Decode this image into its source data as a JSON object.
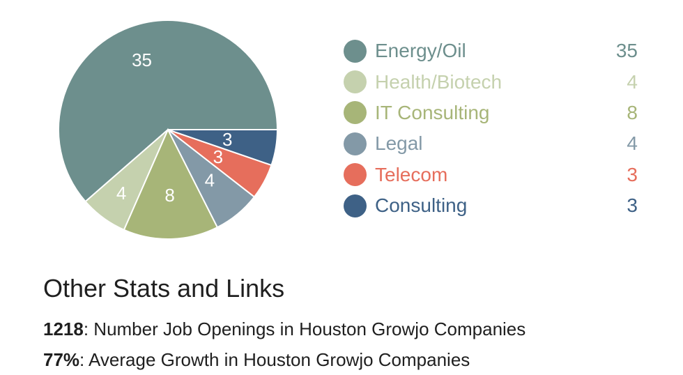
{
  "chart_data": {
    "type": "pie",
    "categories": [
      "Energy/Oil",
      "Health/Biotech",
      "IT Consulting",
      "Legal",
      "Telecom",
      "Consulting"
    ],
    "values": [
      35,
      4,
      8,
      4,
      3,
      3
    ],
    "colors": [
      "#6d8f8d",
      "#c5d1ae",
      "#a7b578",
      "#8399a7",
      "#e66e5c",
      "#3e6186"
    ],
    "data_labels": [
      "35",
      "4",
      "8",
      "4",
      "3",
      "3"
    ],
    "legend_position": "right"
  },
  "legend": [
    {
      "label": "Energy/Oil",
      "value": "35",
      "color": "#6d8f8d"
    },
    {
      "label": "Health/Biotech",
      "value": "4",
      "color": "#c5d1ae"
    },
    {
      "label": "IT Consulting",
      "value": "8",
      "color": "#a7b578"
    },
    {
      "label": "Legal",
      "value": "4",
      "color": "#8399a7"
    },
    {
      "label": "Telecom",
      "value": "3",
      "color": "#e66e5c"
    },
    {
      "label": "Consulting",
      "value": "3",
      "color": "#3e6186"
    }
  ],
  "stats": {
    "title": "Other Stats and Links",
    "lines": [
      {
        "value": "1218",
        "text": ": Number Job Openings in Houston Growjo Companies"
      },
      {
        "value": "77%",
        "text": ": Average Growth in Houston Growjo Companies"
      }
    ]
  }
}
